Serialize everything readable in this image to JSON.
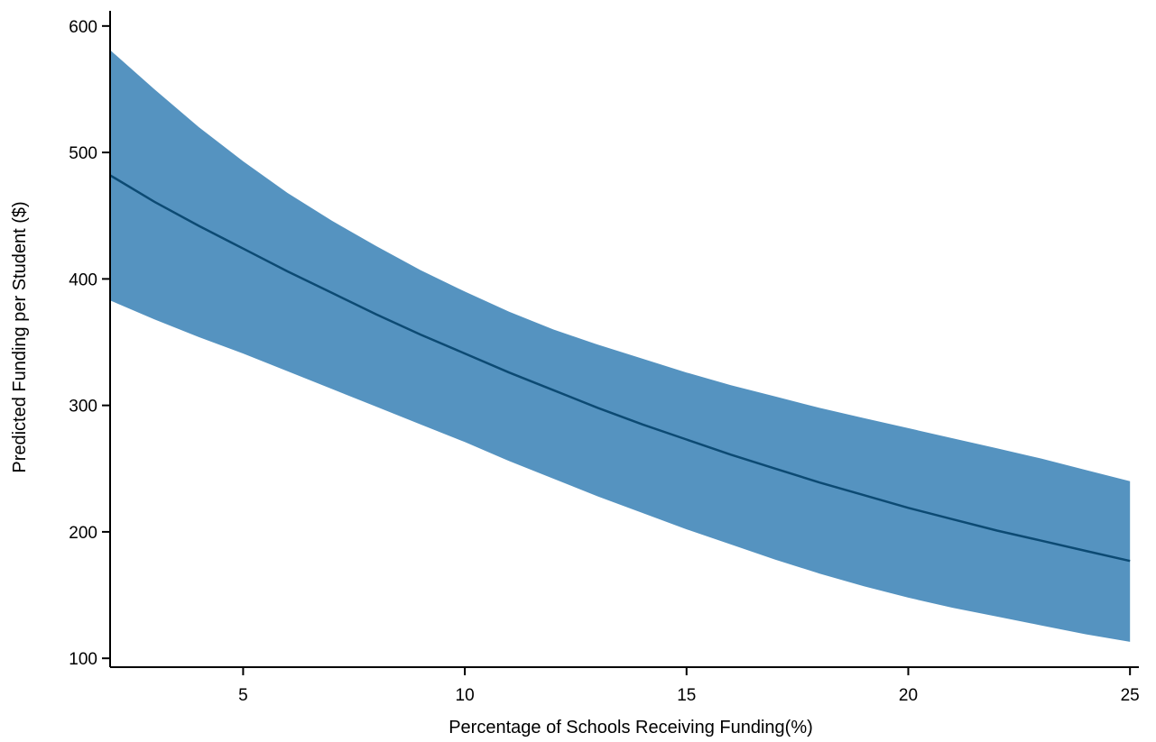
{
  "chart_data": {
    "type": "area",
    "xlabel": "Percentage of Schools Receiving Funding(%)",
    "ylabel": "Predicted Funding per Student ($)",
    "xlim": [
      2,
      25.2
    ],
    "ylim": [
      93,
      612
    ],
    "x_ticks": [
      5,
      10,
      15,
      20,
      25
    ],
    "y_ticks": [
      100,
      200,
      300,
      400,
      500,
      600
    ],
    "grid": false,
    "legend": "none",
    "colors": {
      "band": "#5593c0",
      "line": "#0c4a73",
      "axis": "#000000"
    },
    "series": [
      {
        "x": [
          2,
          3,
          4,
          5,
          6,
          7,
          8,
          9,
          10,
          11,
          12,
          13,
          14,
          15,
          16,
          17,
          18,
          19,
          20,
          21,
          22,
          23,
          24,
          25
        ],
        "values": [
          482,
          461,
          442,
          424,
          406,
          389,
          372,
          356,
          341,
          326,
          312,
          298,
          285,
          273,
          261,
          250,
          239,
          229,
          219,
          210,
          201,
          193,
          185,
          177
        ],
        "lower": [
          383,
          368,
          354,
          341,
          327,
          313,
          299,
          285,
          271,
          256,
          242,
          228,
          215,
          202,
          190,
          178,
          167,
          157,
          148,
          140,
          133,
          126,
          119,
          113
        ],
        "upper": [
          581,
          550,
          520,
          493,
          468,
          446,
          426,
          407,
          390,
          374,
          360,
          348,
          337,
          326,
          316,
          307,
          298,
          290,
          282,
          274,
          266,
          258,
          249,
          240
        ]
      }
    ]
  }
}
